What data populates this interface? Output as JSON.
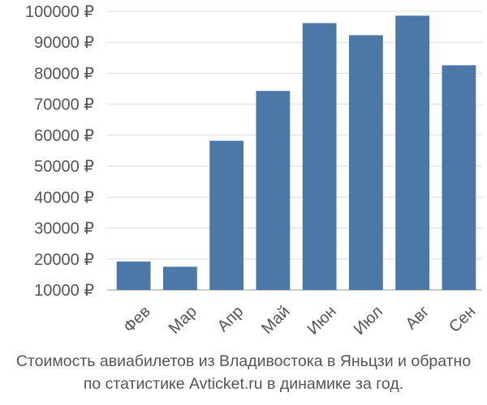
{
  "colors": {
    "bar": "#4c78a8",
    "grid": "#dddddd",
    "axis": "#999999",
    "text": "#555555"
  },
  "caption": {
    "line1": "Стоимость авиабилетов из Владивостока в Яньцзи и обратно",
    "line2": "по статистике Avticket.ru в динамике за год."
  },
  "chart_data": {
    "type": "bar",
    "categories": [
      "Фев",
      "Мар",
      "Апр",
      "Май",
      "Июн",
      "Июл",
      "Авг",
      "Сен"
    ],
    "values": [
      19200,
      17500,
      58200,
      74300,
      96200,
      92300,
      98600,
      82600
    ],
    "ylim": [
      10000,
      100000
    ],
    "yticks": [
      {
        "value": 10000,
        "label": "10000 ₽"
      },
      {
        "value": 20000,
        "label": "20000 ₽"
      },
      {
        "value": 30000,
        "label": "30000 ₽"
      },
      {
        "value": 40000,
        "label": "40000 ₽"
      },
      {
        "value": 50000,
        "label": "50000 ₽"
      },
      {
        "value": 60000,
        "label": "60000 ₽"
      },
      {
        "value": 70000,
        "label": "70000 ₽"
      },
      {
        "value": 80000,
        "label": "80000 ₽"
      },
      {
        "value": 90000,
        "label": "90000 ₽"
      },
      {
        "value": 100000,
        "label": "100000 ₽"
      }
    ],
    "grid": true
  }
}
